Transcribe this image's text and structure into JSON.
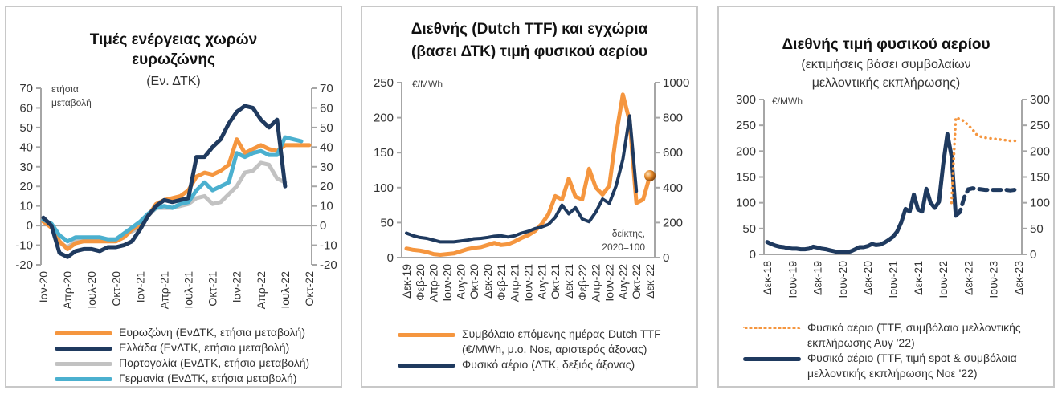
{
  "colors": {
    "orange": "#f5963f",
    "navy": "#1f3a5f",
    "grey": "#c2c2c2",
    "cyan": "#4bb0cf",
    "axis": "#a6a6a6"
  },
  "chart_data": [
    {
      "type": "line",
      "title": "Τιμές ενέργειας χωρών ευρωζώνης",
      "title_lines": [
        "Τιμές ενέργειας χωρών",
        "ευρωζώνης"
      ],
      "subtitle": "(Εν. ΔΤΚ)",
      "ylabel": "ετήσια μεταβολή",
      "ylabel_lines": [
        "ετήσια",
        "μεταβολή"
      ],
      "ylim": [
        -20,
        70
      ],
      "yticks": [
        -20,
        -10,
        0,
        10,
        20,
        30,
        40,
        50,
        60,
        70
      ],
      "secondary_ylim": [
        -20,
        70
      ],
      "x_tick_labels": [
        "Ιαν-20",
        "Απρ-20",
        "Ιουλ-20",
        "Οκτ-20",
        "Ιαν-21",
        "Απρ-21",
        "Ιουλ-21",
        "Οκτ-21",
        "Ιαν-22",
        "Απρ-22",
        "Ιουλ-22",
        "Οκτ-22"
      ],
      "x_tick_index": [
        0,
        3,
        6,
        9,
        12,
        15,
        18,
        21,
        24,
        27,
        30,
        33
      ],
      "n_points": 34,
      "series": [
        {
          "name": "Ευρωζώνη (ΕνΔΤΚ, ετήσια μεταβολή)",
          "color": "#f5963f",
          "values": [
            2,
            -1,
            -8,
            -12,
            -9,
            -8,
            -8,
            -8,
            -8,
            -8,
            -6,
            -2,
            0,
            5,
            11,
            13,
            14,
            15,
            18,
            25,
            27,
            26,
            28,
            31,
            44,
            37,
            39,
            41,
            39,
            38,
            41,
            41,
            41,
            41
          ]
        },
        {
          "name": "Ελλάδα (ΕνΔΤΚ, ετήσια μεταβολή)",
          "color": "#1f3a5f",
          "values": [
            4,
            0,
            -14,
            -16,
            -13,
            -12,
            -12,
            -13,
            -11,
            -11,
            -10,
            -8,
            -2,
            5,
            10,
            13,
            12,
            13,
            14,
            35,
            35,
            40,
            44,
            52,
            58,
            61,
            60,
            54,
            50,
            54,
            20,
            null,
            null,
            null
          ]
        },
        {
          "name": "Πορτογαλία (ΕνΔΤΚ, ετήσια μεταβολή)",
          "color": "#c2c2c2",
          "values": [
            3,
            0,
            -9,
            -11,
            -8,
            -7,
            -7,
            -7,
            -7,
            -7,
            -5,
            -3,
            -1,
            5,
            9,
            9,
            9,
            10,
            11,
            14,
            15,
            11,
            12,
            16,
            20,
            27,
            28,
            32,
            31,
            24,
            22,
            null,
            null,
            null
          ]
        },
        {
          "name": "Γερμανία (ΕνΔΤΚ, ετήσια μεταβολή)",
          "color": "#4bb0cf",
          "values": [
            3,
            1,
            -5,
            -8,
            -6,
            -6,
            -6,
            -6,
            -7,
            -7,
            -4,
            -1,
            2,
            6,
            9,
            10,
            9,
            11,
            12,
            18,
            22,
            18,
            20,
            22,
            37,
            35,
            37,
            38,
            36,
            36,
            45,
            44,
            43,
            null
          ]
        }
      ],
      "legend_position": "bottom"
    },
    {
      "type": "line",
      "title": "Διεθνής (Dutch TTF) και εγχώρια (βασει ΔΤΚ) τιμή φυσικού αερίου",
      "title_lines": [
        "Διεθνής (Dutch TTF) και εγχώρια",
        "(βασει ΔΤΚ) τιμή φυσικού αερίου"
      ],
      "ylabel": "€/MWh",
      "ylim": [
        0,
        250
      ],
      "yticks": [
        0,
        50,
        100,
        150,
        200,
        250
      ],
      "secondary_ylabel": "δείκτης, 2020=100",
      "secondary_ylabel_lines": [
        "δείκτης,",
        "2020=100"
      ],
      "secondary_ylim": [
        0,
        1000
      ],
      "secondary_yticks": [
        0,
        200,
        400,
        600,
        800,
        1000
      ],
      "x_tick_labels": [
        "Δεκ-19",
        "Φεβ-20",
        "Απρ-20",
        "Ιουν-20",
        "Αυγ-20",
        "Οκτ-20",
        "Δεκ-20",
        "Φεβ-21",
        "Απρ-21",
        "Ιουν-21",
        "Αυγ-21",
        "Οκτ-21",
        "Δεκ-21",
        "Φεβ-22",
        "Απρ-22",
        "Ιουν-22",
        "Αυγ-22",
        "Οκτ-22",
        "Δεκ-22"
      ],
      "x_tick_index": [
        0,
        2,
        4,
        6,
        8,
        10,
        12,
        14,
        16,
        18,
        20,
        22,
        24,
        26,
        28,
        30,
        32,
        34,
        36
      ],
      "n_points": 37,
      "series": [
        {
          "name": "Συμβόλαιο επόμενης ημέρας Dutch TTF (€/MWh, μ.ο. Νοε, αριστερός άξονας)",
          "color": "#f5963f",
          "axis": "left",
          "values": [
            13,
            11,
            10,
            8,
            5,
            4,
            5,
            6,
            9,
            12,
            14,
            15,
            18,
            21,
            18,
            19,
            23,
            28,
            32,
            38,
            48,
            62,
            88,
            83,
            113,
            87,
            83,
            127,
            100,
            90,
            103,
            175,
            233,
            195,
            78,
            83,
            117
          ]
        },
        {
          "name": "Φυσικό αέριο (ΔΤΚ, δεξιός άξονας)",
          "color": "#1f3a5f",
          "axis": "right",
          "values": [
            140,
            125,
            115,
            110,
            100,
            90,
            90,
            90,
            95,
            100,
            108,
            110,
            115,
            122,
            125,
            118,
            125,
            140,
            150,
            165,
            175,
            190,
            230,
            300,
            250,
            285,
            220,
            205,
            260,
            335,
            310,
            410,
            560,
            810,
            380,
            null,
            null
          ]
        }
      ],
      "end_marker": {
        "series": 0,
        "value": 117
      },
      "legend_position": "bottom"
    },
    {
      "type": "line",
      "title": "Διεθνής τιμή φυσικού αερίου",
      "subtitle": "(εκτιμήσεις βάσει συμβολαίων μελλοντικής εκπλήρωσης)",
      "subtitle_lines": [
        "(εκτιμήσεις βάσει συμβολαίων",
        "μελλοντικής εκπλήρωσης)"
      ],
      "ylabel": "€/MWh",
      "ylim": [
        0,
        300
      ],
      "yticks": [
        0,
        50,
        100,
        150,
        200,
        250,
        300
      ],
      "secondary_ylim": [
        0,
        300
      ],
      "x_tick_labels": [
        "Δεκ-18",
        "Ιουν-19",
        "Δεκ-19",
        "Ιουν-20",
        "Δεκ-20",
        "Ιουν-21",
        "Δεκ-21",
        "Ιουν-22",
        "Δεκ-22",
        "Ιουν-23",
        "Δεκ-23"
      ],
      "x_tick_index": [
        0,
        6,
        12,
        18,
        24,
        30,
        36,
        42,
        48,
        54,
        60
      ],
      "n_points": 61,
      "series": [
        {
          "name": "Φυσικό αέριο (TTF, συμβόλαια μελλοντικής εκπλήρωσης Αυγ '22)",
          "color": "#f5963f",
          "style": "dotted",
          "x": [
            44,
            45,
            46,
            47,
            48,
            49,
            50,
            51,
            52,
            53,
            54,
            55,
            56,
            57,
            58,
            59,
            60
          ],
          "values": [
            100,
            265,
            262,
            258,
            250,
            242,
            232,
            228,
            226,
            225,
            224,
            223,
            222,
            221,
            220,
            220,
            220
          ]
        },
        {
          "name": "Φυσικό αέριο (TTF, τιμή spot & συμβόλαια μελλοντικής εκπλήρωσης Νοε '22)",
          "color": "#1f3a5f",
          "style": "solid",
          "x": [
            0,
            1,
            2,
            3,
            4,
            5,
            6,
            7,
            8,
            9,
            10,
            11,
            12,
            13,
            14,
            15,
            16,
            17,
            18,
            19,
            20,
            21,
            22,
            23,
            24,
            25,
            26,
            27,
            28,
            29,
            30,
            31,
            32,
            33,
            34,
            35,
            36,
            37,
            38,
            39,
            40,
            41,
            42,
            43,
            44,
            45
          ],
          "values": [
            24,
            20,
            17,
            15,
            14,
            12,
            11,
            11,
            10,
            10,
            11,
            15,
            13,
            11,
            10,
            8,
            6,
            4,
            4,
            4,
            6,
            10,
            14,
            14,
            16,
            20,
            18,
            19,
            23,
            28,
            34,
            44,
            62,
            88,
            83,
            116,
            87,
            83,
            127,
            100,
            90,
            102,
            175,
            233,
            190,
            75
          ]
        },
        {
          "name": "Φυσικό αέριο (forward, Νοε '22)",
          "color": "#1f3a5f",
          "style": "dashed",
          "x": [
            45,
            46,
            47,
            48,
            49,
            50,
            51,
            52,
            53,
            54,
            55,
            56,
            57,
            58,
            59,
            60
          ],
          "values": [
            75,
            82,
            110,
            126,
            128,
            127,
            126,
            125,
            125,
            125,
            125,
            125,
            125,
            124,
            125,
            128
          ]
        }
      ],
      "legend_position": "bottom"
    }
  ],
  "legends": [
    [
      "Ευρωζώνη (ΕνΔΤΚ, ετήσια μεταβολή)",
      "Ελλάδα (ΕνΔΤΚ, ετήσια μεταβολή)",
      "Πορτογαλία (ΕνΔΤΚ, ετήσια μεταβολή)",
      "Γερμανία (ΕνΔΤΚ, ετήσια μεταβολή)"
    ],
    [
      "Συμβόλαιο επόμενης ημέρας Dutch TTF",
      "(€/MWh, μ.ο. Νοε, αριστερός άξονας)",
      "Φυσικό αέριο (ΔΤΚ, δεξιός άξονας)"
    ],
    [
      "Φυσικό αέριο (TTF, συμβόλαια μελλοντικής",
      "εκπλήρωσης Αυγ '22)",
      "Φυσικό αέριο (TTF, τιμή spot & συμβόλαια",
      "μελλοντικής εκπλήρωσης Νοε '22)"
    ]
  ]
}
